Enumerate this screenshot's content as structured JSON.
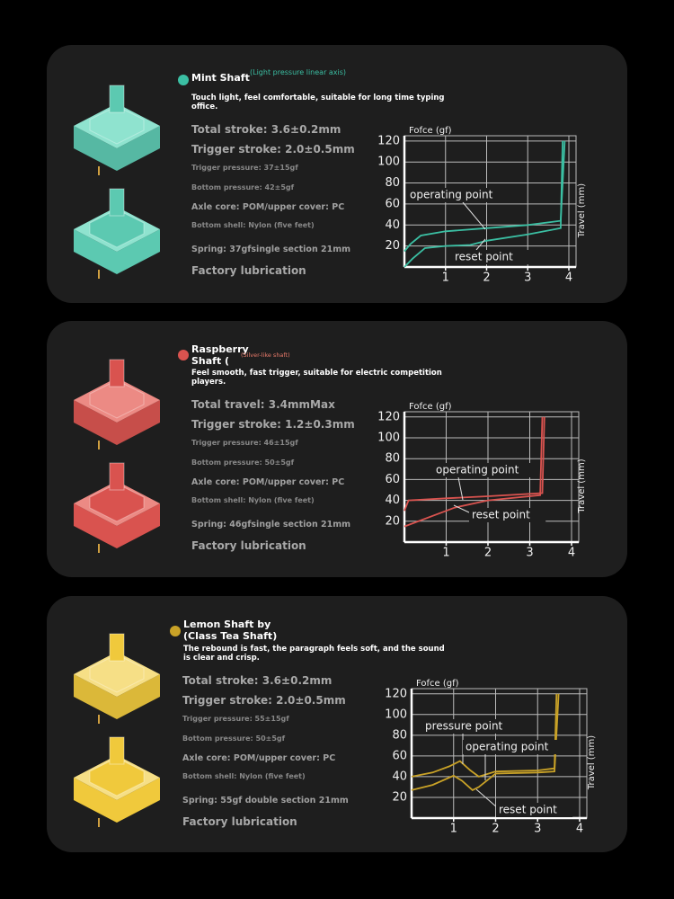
{
  "cards": [
    {
      "title": "Mint Shaft",
      "note": "(Light pressure linear axis)",
      "description": "Touch light, feel comfortable, suitable for long time typing office.",
      "specs": [
        "Total stroke: 3.6±0.2mm",
        "Trigger stroke: 2.0±0.5mm",
        "Trigger pressure: 37±15gf",
        "Bottom pressure: 42±5gf",
        "Axle core: POM/upper cover: PC",
        "Bottom shell: Nylon (five feet)",
        "Spring: 37gfsingle section 21mm",
        "Factory lubrication"
      ]
    },
    {
      "title": "Raspberry Shaft (",
      "note": "(Silver-like shaft)",
      "description": "Feel smooth, fast trigger, suitable for electric competition players.",
      "specs": [
        "Total travel: 3.4mmMax",
        "Trigger stroke: 1.2±0.3mm",
        "Trigger pressure: 46±15gf",
        "Bottom pressure: 50±5gf",
        "Axle core: POM/upper cover: PC",
        "Bottom shell: Nylon (five feet)",
        "Spring: 46gfsingle section 21mm",
        "Factory lubrication"
      ]
    },
    {
      "title": "Lemon Shaft by (Class Tea Shaft)",
      "description": "The rebound is fast, the paragraph feels soft, and the sound is clear and crisp.",
      "specs": [
        "Total stroke: 3.6±0.2mm",
        "Trigger stroke: 2.0±0.5mm",
        "Trigger pressure: 55±15gf",
        "Bottom pressure: 50±5gf",
        "Axle core: POM/upper cover: PC",
        "Bottom shell: Nylon (five feet)",
        "Spring: 55gf double section 21mm",
        "Factory lubrication"
      ]
    }
  ],
  "chart_data": [
    {
      "type": "line",
      "y_label": "Fofce (gf)",
      "x_label": "Travel (mm)",
      "xlim": [
        0,
        4
      ],
      "ylim": [
        0,
        125
      ],
      "xticks": [
        1,
        2,
        3,
        4
      ],
      "yticks": [
        20,
        40,
        60,
        80,
        100,
        120
      ],
      "grid": true,
      "series": [
        {
          "color": "#3bbfa3",
          "x": [
            0,
            0.15,
            0.4,
            1,
            2,
            3,
            3.8,
            3.85,
            3.9
          ],
          "values": [
            15,
            22,
            30,
            34,
            37,
            40,
            44,
            80,
            120
          ]
        },
        {
          "color": "#3bbfa3",
          "x": [
            0,
            0.2,
            0.5,
            1,
            1.6,
            2,
            3,
            3.8,
            3.85
          ],
          "values": [
            0,
            8,
            18,
            20,
            21,
            25,
            31,
            37,
            120
          ]
        }
      ],
      "annotations": [
        "operating point",
        "reset point"
      ]
    },
    {
      "type": "line",
      "y_label": "Fofce (gf)",
      "x_label": "Travel (mm)",
      "xlim": [
        0,
        4
      ],
      "ylim": [
        0,
        125
      ],
      "xticks": [
        1,
        2,
        3,
        4
      ],
      "yticks": [
        20,
        40,
        60,
        80,
        100,
        120
      ],
      "grid": true,
      "series": [
        {
          "color": "#d9534f",
          "x": [
            0,
            0.1,
            1,
            2,
            3.3,
            3.35
          ],
          "values": [
            30,
            40,
            42,
            44,
            47,
            120
          ]
        },
        {
          "color": "#d9534f",
          "x": [
            0,
            1.2,
            2,
            3.25,
            3.3
          ],
          "values": [
            15,
            33,
            40,
            45,
            120
          ]
        }
      ],
      "annotations": [
        "operating point",
        "reset point"
      ]
    },
    {
      "type": "line",
      "y_label": "Fofce (gf)",
      "x_label": "Travel (mm)",
      "xlim": [
        0,
        4
      ],
      "ylim": [
        0,
        125
      ],
      "xticks": [
        1,
        2,
        3,
        4
      ],
      "yticks": [
        20,
        40,
        60,
        80,
        100,
        120
      ],
      "grid": true,
      "series": [
        {
          "color": "#c9a227",
          "x": [
            0,
            0.5,
            0.9,
            1.15,
            1.4,
            1.6,
            2,
            3,
            3.4,
            3.45
          ],
          "values": [
            40,
            44,
            50,
            55,
            46,
            40,
            45,
            46,
            48,
            120
          ]
        },
        {
          "color": "#c9a227",
          "x": [
            0,
            0.5,
            1,
            1.2,
            1.45,
            1.6,
            2,
            3,
            3.4,
            3.5
          ],
          "values": [
            27,
            32,
            41,
            36,
            27,
            30,
            43,
            44,
            45,
            120
          ]
        }
      ],
      "annotations": [
        "pressure point",
        "operating point",
        "reset point"
      ]
    }
  ]
}
